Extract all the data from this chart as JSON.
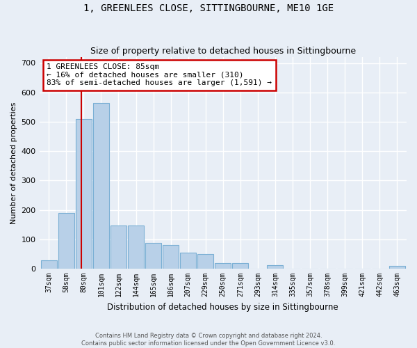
{
  "title": "1, GREENLEES CLOSE, SITTINGBOURNE, ME10 1GE",
  "subtitle": "Size of property relative to detached houses in Sittingbourne",
  "xlabel": "Distribution of detached houses by size in Sittingbourne",
  "ylabel": "Number of detached properties",
  "footer_line1": "Contains HM Land Registry data © Crown copyright and database right 2024.",
  "footer_line2": "Contains public sector information licensed under the Open Government Licence v3.0.",
  "categories": [
    "37sqm",
    "58sqm",
    "80sqm",
    "101sqm",
    "122sqm",
    "144sqm",
    "165sqm",
    "186sqm",
    "207sqm",
    "229sqm",
    "250sqm",
    "271sqm",
    "293sqm",
    "314sqm",
    "335sqm",
    "357sqm",
    "378sqm",
    "399sqm",
    "421sqm",
    "442sqm",
    "463sqm"
  ],
  "values": [
    28,
    190,
    510,
    565,
    148,
    148,
    88,
    80,
    55,
    50,
    18,
    18,
    0,
    12,
    0,
    0,
    0,
    0,
    0,
    0,
    10
  ],
  "bar_color": "#b8d0e8",
  "bar_edge_color": "#7aafd4",
  "bg_color": "#e8eef6",
  "grid_color": "#d0dae8",
  "annotation_text": "1 GREENLEES CLOSE: 85sqm\n← 16% of detached houses are smaller (310)\n83% of semi-detached houses are larger (1,591) →",
  "annotation_box_color": "#ffffff",
  "annotation_box_edge_color": "#cc0000",
  "vline_color": "#cc0000",
  "vline_pos": 1.85,
  "ylim": [
    0,
    720
  ],
  "yticks": [
    0,
    100,
    200,
    300,
    400,
    500,
    600,
    700
  ]
}
